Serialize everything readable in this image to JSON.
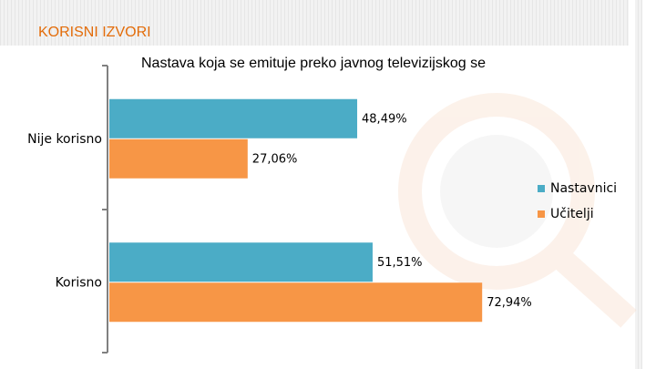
{
  "header": {
    "title": "KORISNI IZVORI"
  },
  "chart_data": {
    "type": "bar",
    "orientation": "horizontal",
    "title": "Nastava koja se emituje preko javnog televizijskog se",
    "categories": [
      "Nije korisno",
      "Korisno"
    ],
    "series": [
      {
        "name": "Nastavnici",
        "color": "#4bacc6",
        "values": [
          48.49,
          51.51
        ],
        "value_labels": [
          "48,49%",
          "51,51%"
        ]
      },
      {
        "name": "Učitelji",
        "color": "#f79646",
        "values": [
          27.06,
          72.94
        ],
        "value_labels": [
          "27,06%",
          "72,94%"
        ]
      }
    ],
    "xlim": [
      0,
      100
    ],
    "legend": "right"
  }
}
